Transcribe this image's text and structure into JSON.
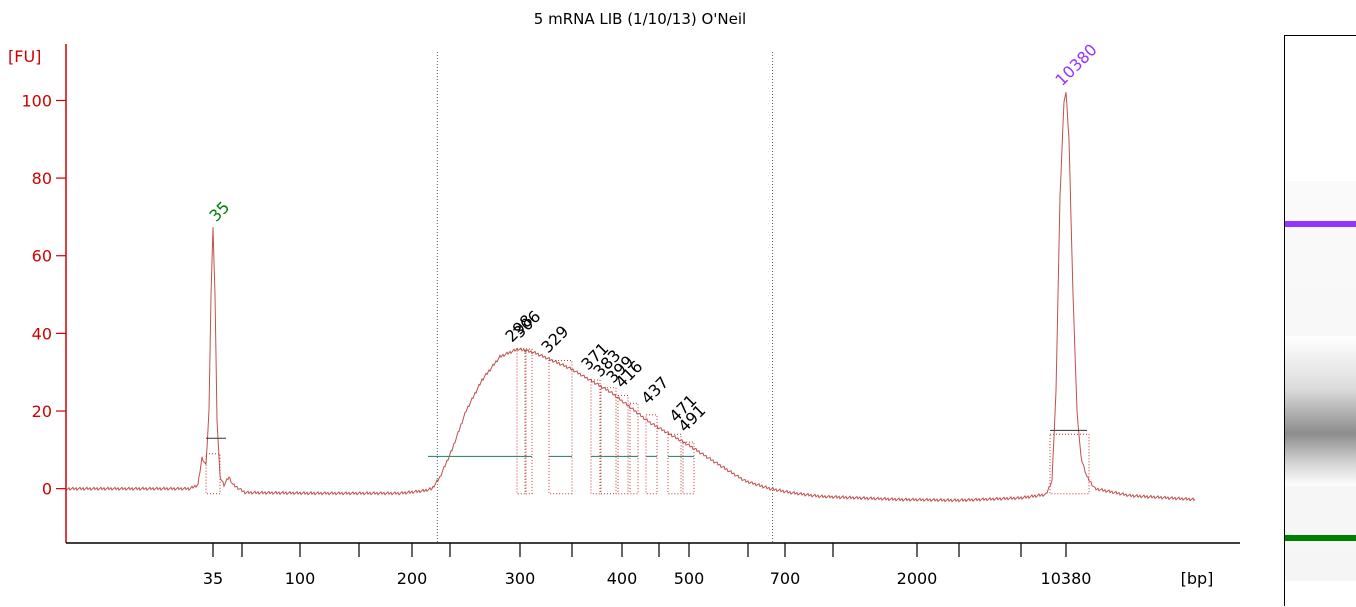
{
  "chart_data": {
    "type": "line",
    "title": "5 mRNA LIB (1/10/13) O'Neil",
    "ylabel": "[FU]",
    "xlabel": "[bp]",
    "ylim": [
      -14,
      113
    ],
    "y_ticks": [
      0,
      20,
      40,
      60,
      80,
      100
    ],
    "x_tick_labels": [
      "35",
      "100",
      "200",
      "300",
      "400",
      "500",
      "700",
      "2000",
      "10380"
    ],
    "series": [
      {
        "x": [
          "35",
          "35",
          "35",
          "35",
          "35",
          "100",
          "200",
          "220",
          "300",
          "400",
          "500",
          "700",
          "2000",
          "10380",
          "10380",
          "10380"
        ],
        "values": [
          0,
          8,
          67,
          8,
          0,
          -1,
          -1,
          0,
          36,
          22,
          10,
          0,
          -3,
          0,
          102,
          0
        ]
      }
    ],
    "peaks": [
      {
        "label": "35",
        "fu": 67,
        "color": "#008000"
      },
      {
        "label": "10380",
        "fu": 102,
        "color": "#9933ff"
      }
    ],
    "peak_labels": [
      "298",
      "306",
      "329",
      "371",
      "383",
      "399",
      "416",
      "437",
      "471",
      "491"
    ],
    "region_markers": [
      "220",
      "670"
    ],
    "colors": {
      "axis": "#d00000",
      "trace": "#c0504d",
      "lower_marker": "#008000",
      "upper_marker": "#9933ff"
    }
  }
}
